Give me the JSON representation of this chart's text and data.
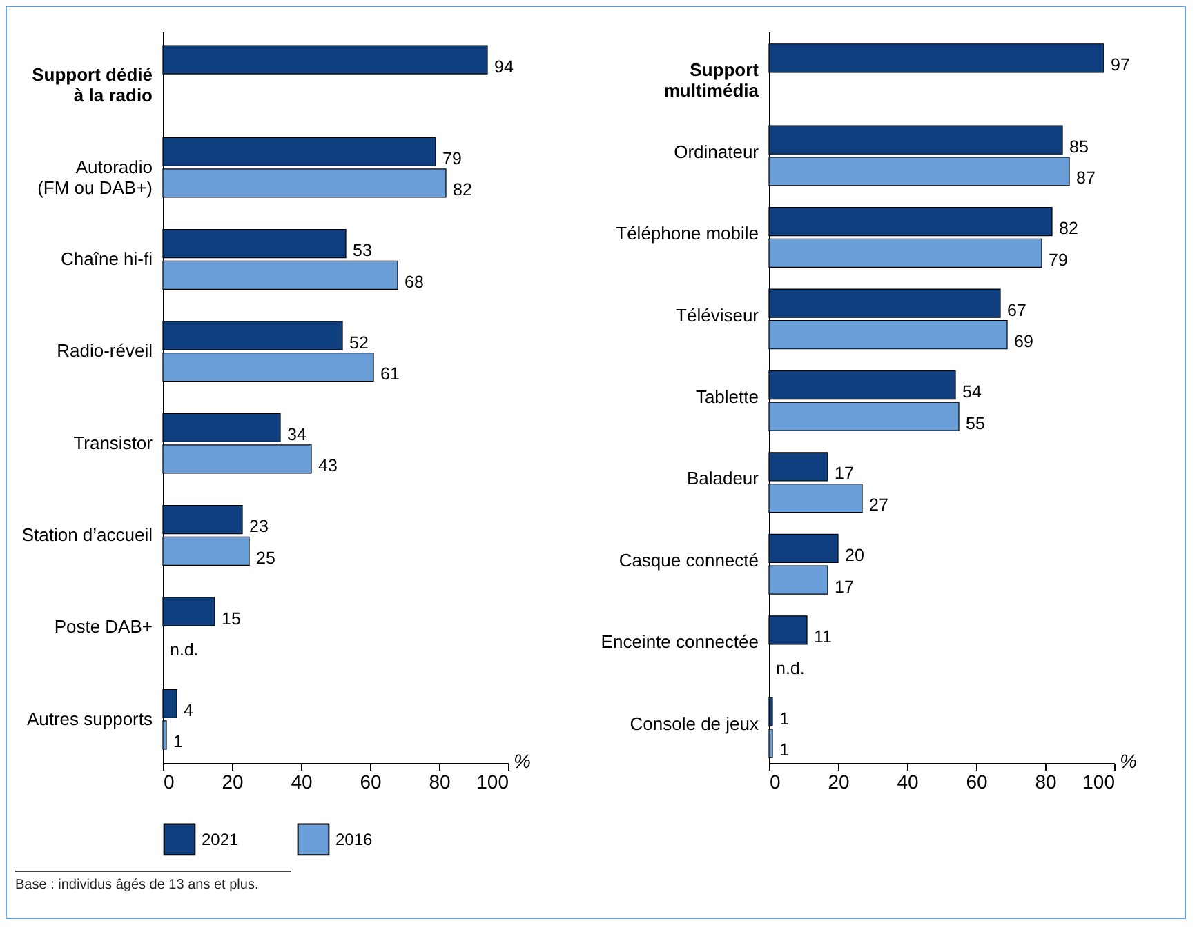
{
  "chart_data": [
    {
      "type": "bar",
      "orientation": "horizontal",
      "xlabel": "%",
      "categories": [
        "Support dédié\nà la radio",
        "Autoradio\n(FM ou DAB+)",
        "Chaîne hi-fi",
        "Radio-réveil",
        "Transistor",
        "Station d’accueil",
        "Poste DAB+",
        "Autres supports"
      ],
      "series": [
        {
          "name": "2021",
          "color": "#0f3f7f",
          "values": [
            94,
            79,
            53,
            52,
            34,
            23,
            15,
            4
          ],
          "value_labels": [
            "94",
            "79",
            "53",
            "52",
            "34",
            "23",
            "15",
            "4"
          ]
        },
        {
          "name": "2016",
          "color": "#6b9fd9",
          "values": [
            null,
            82,
            68,
            61,
            43,
            25,
            null,
            1
          ],
          "value_labels": [
            null,
            "82",
            "68",
            "61",
            "43",
            "25",
            "n.d.",
            "1"
          ]
        }
      ],
      "xlim": [
        0,
        100
      ],
      "xticks": [
        0,
        20,
        40,
        60,
        80,
        100
      ],
      "grid": false,
      "legend": "bottom",
      "annotations": [
        "Base : individus âgés de 13 ans et plus."
      ]
    },
    {
      "type": "bar",
      "orientation": "horizontal",
      "xlabel": "%",
      "categories": [
        "Support\nmultimédia",
        "Ordinateur",
        "Téléphone mobile",
        "Téléviseur",
        "Tablette",
        "Baladeur",
        "Casque connecté",
        "Enceinte connectée",
        "Console de jeux"
      ],
      "series": [
        {
          "name": "2021",
          "color": "#0f3f7f",
          "values": [
            97,
            85,
            82,
            67,
            54,
            17,
            20,
            11,
            1
          ],
          "value_labels": [
            "97",
            "85",
            "82",
            "67",
            "54",
            "17",
            "20",
            "11",
            "1"
          ]
        },
        {
          "name": "2016",
          "color": "#6b9fd9",
          "values": [
            null,
            87,
            79,
            69,
            55,
            27,
            17,
            null,
            1
          ],
          "value_labels": [
            null,
            "87",
            "79",
            "69",
            "55",
            "27",
            "17",
            "n.d.",
            "1"
          ]
        }
      ],
      "xlim": [
        0,
        100
      ],
      "xticks": [
        0,
        20,
        40,
        60,
        80,
        100
      ],
      "grid": false,
      "legend": "bottom"
    }
  ]
}
